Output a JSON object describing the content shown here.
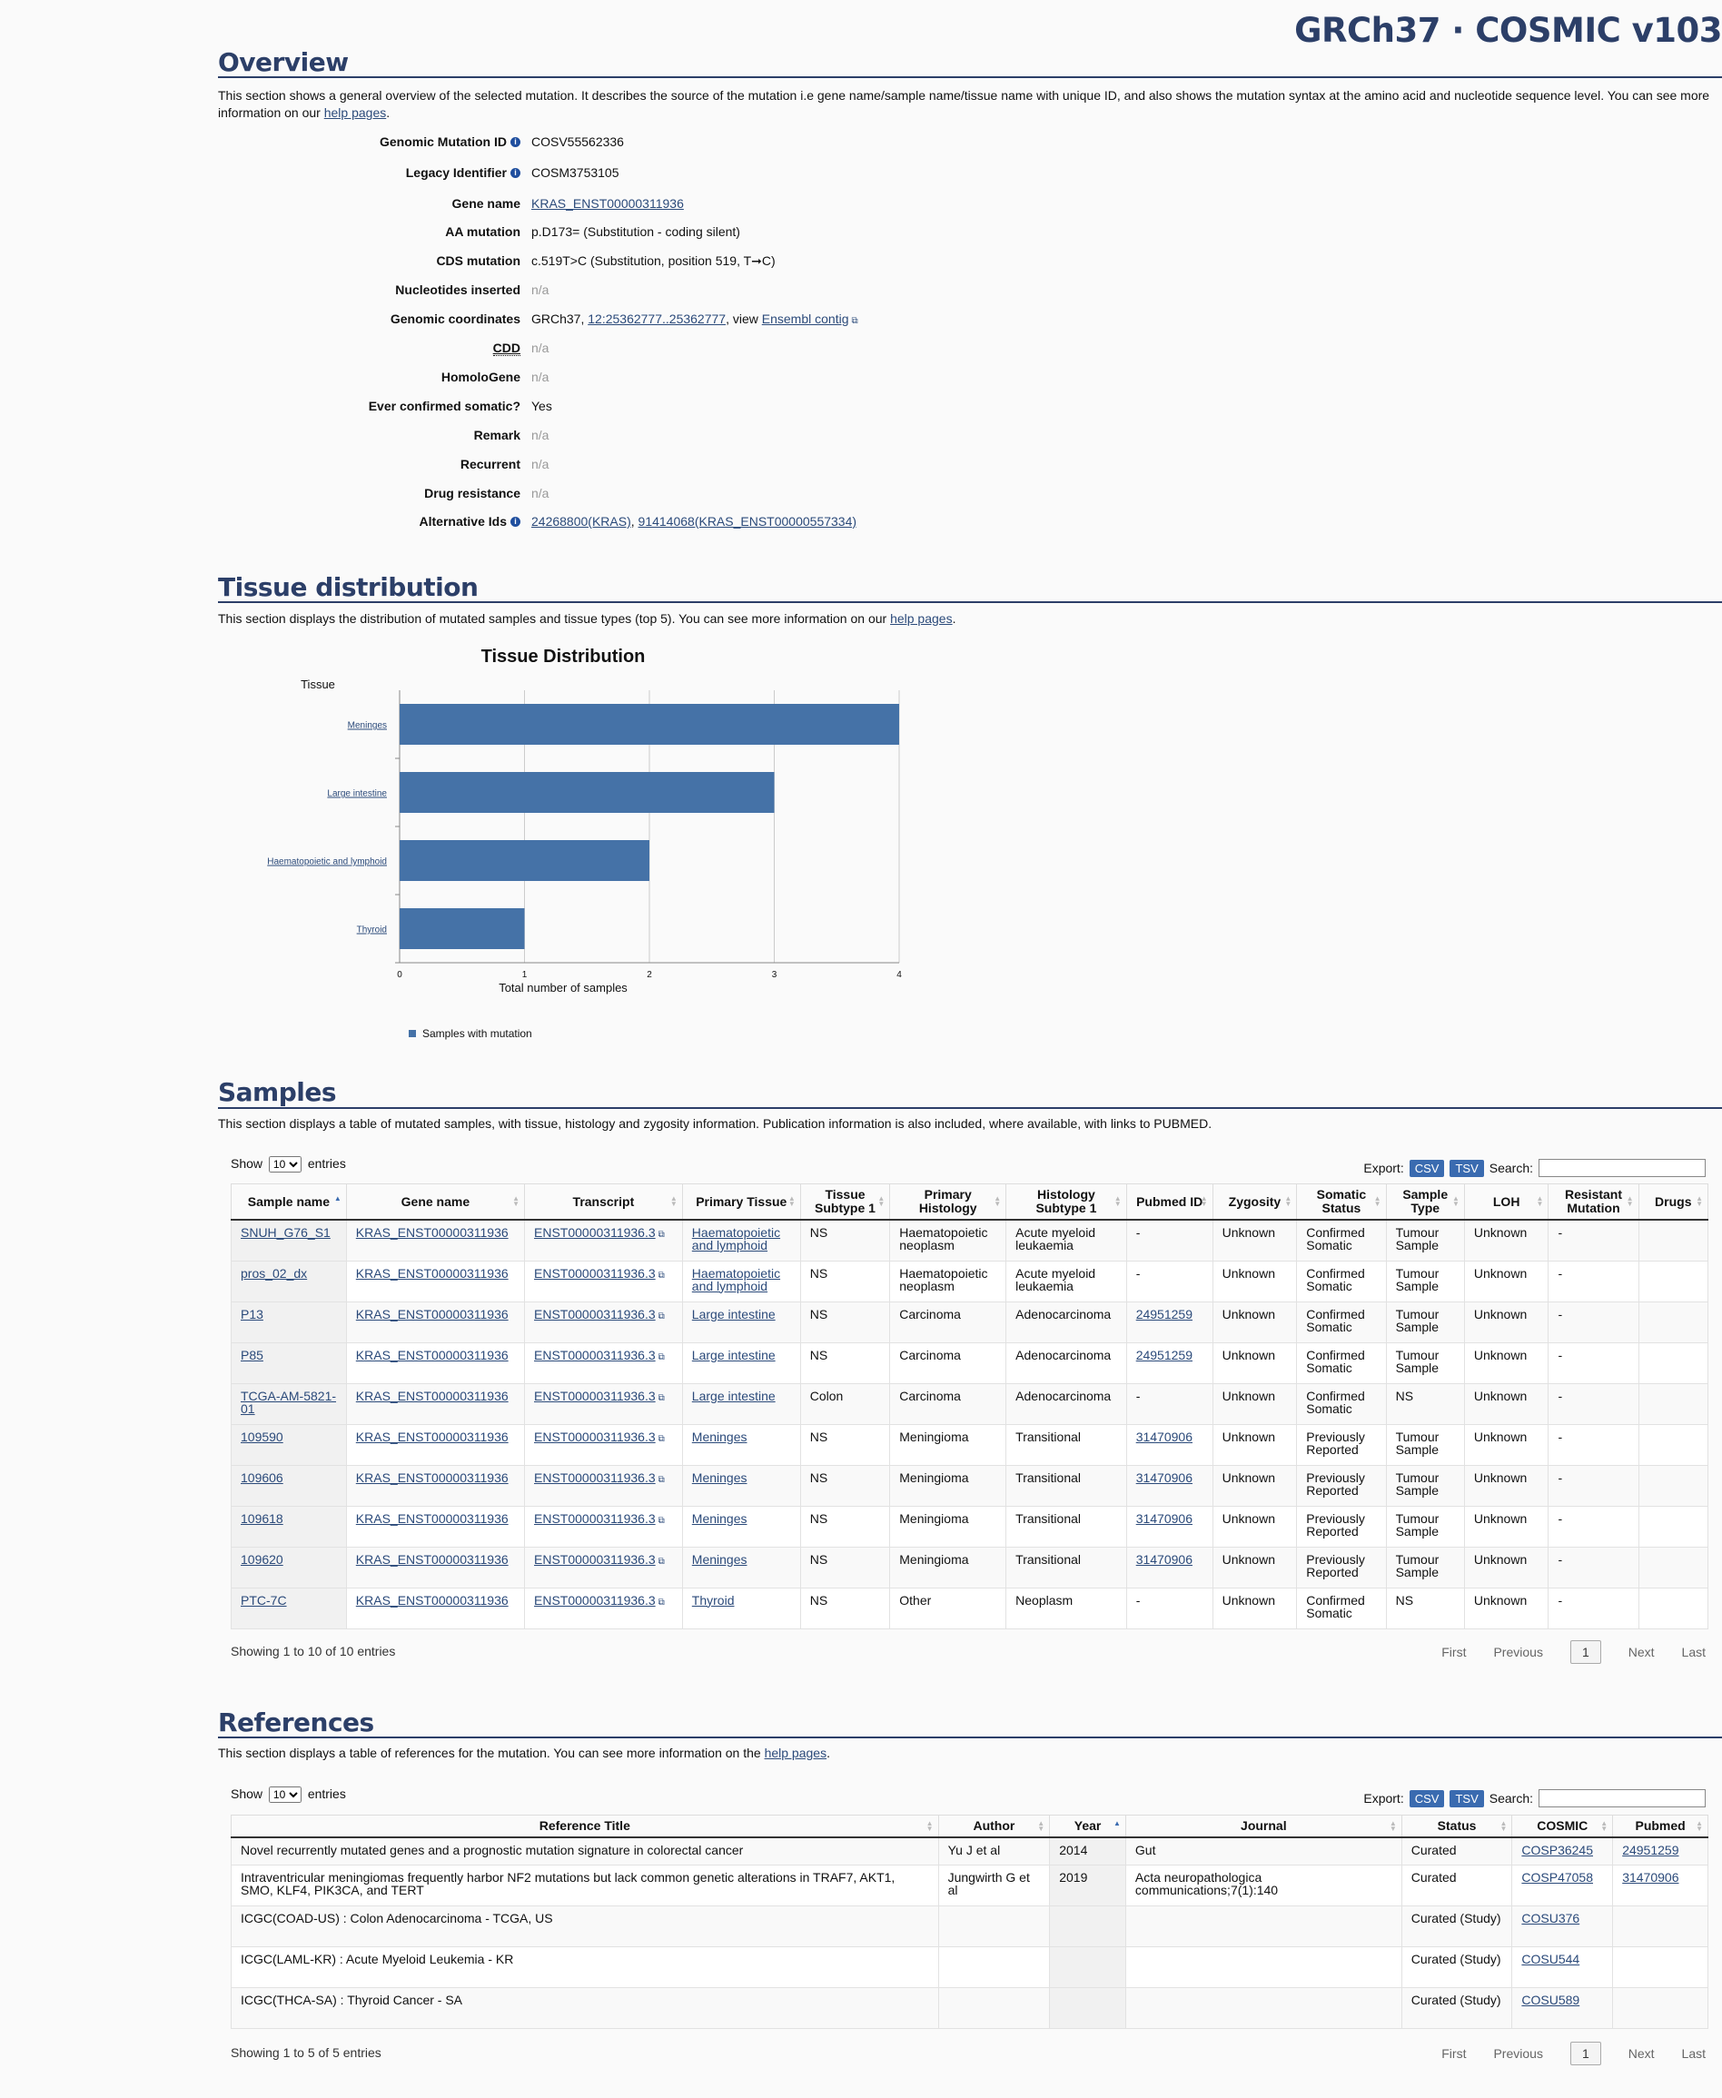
{
  "header": {
    "site_title": "GRCh37 · COSMIC v103"
  },
  "overview": {
    "heading": "Overview",
    "intro_1": "This section shows a general overview of the selected mutation. It describes the source of the mutation i.e gene name/sample name/tissue name with unique ID, and also shows the mutation syntax at the amino acid and nucleotide sequence level. You can see more information on our ",
    "intro_link": "help pages",
    "intro_end": ".",
    "fields": {
      "genomic_mutation_id": {
        "label": "Genomic Mutation ID",
        "value": "COSV55562336"
      },
      "legacy_identifier": {
        "label": "Legacy Identifier",
        "value": "COSM3753105"
      },
      "gene_name": {
        "label": "Gene name",
        "value": "KRAS_ENST00000311936"
      },
      "aa_mutation": {
        "label": "AA mutation",
        "value": "p.D173= (Substitution - coding silent)"
      },
      "cds_mutation": {
        "label": "CDS mutation",
        "value": "c.519T>C (Substitution, position 519, T➞C)"
      },
      "nucleotides_inserted": {
        "label": "Nucleotides inserted",
        "value": "n/a"
      },
      "genomic_coordinates": {
        "label": "Genomic coordinates",
        "prefix": "GRCh37, ",
        "link": "12:25362777..25362777",
        "mid": ", view ",
        "link2": "Ensembl contig"
      },
      "cdd": {
        "label": "CDD",
        "value": "n/a"
      },
      "homologene": {
        "label": "HomoloGene",
        "value": "n/a"
      },
      "ever_confirmed": {
        "label": "Ever confirmed somatic?",
        "value": "Yes"
      },
      "remark": {
        "label": "Remark",
        "value": "n/a"
      },
      "recurrent": {
        "label": "Recurrent",
        "value": "n/a"
      },
      "drug_resistance": {
        "label": "Drug resistance",
        "value": "n/a"
      },
      "alternative_ids": {
        "label": "Alternative Ids",
        "link1": "24268800(KRAS)",
        "sep": ", ",
        "link2": "91414068(KRAS_ENST00000557334)"
      }
    }
  },
  "tissue": {
    "heading": "Tissue distribution",
    "intro": "This section displays the distribution of mutated samples and tissue types (top 5). You can see more information on our ",
    "intro_link": "help pages",
    "intro_end": "."
  },
  "chart_data": {
    "type": "bar",
    "orientation": "horizontal",
    "title": "Tissue Distribution",
    "ylabel": "Tissue",
    "xlabel": "Total number of samples",
    "categories": [
      "Meninges",
      "Large intestine",
      "Haematopoietic and lymphoid",
      "Thyroid"
    ],
    "series": [
      {
        "name": "Samples with mutation",
        "values": [
          4,
          3,
          2,
          1
        ]
      }
    ],
    "xlim": [
      0,
      4
    ],
    "xticks": [
      "0",
      "1",
      "2",
      "3",
      "4"
    ],
    "bar_color": "#4572a7",
    "grid": true,
    "legend_position": "bottom-left"
  },
  "samples": {
    "heading": "Samples",
    "intro": "This section displays a table of mutated samples, with tissue, histology and zygosity information. Publication information is also included, where available, with links to PUBMED.",
    "show": "Show",
    "page_size": "10",
    "entries": "entries",
    "export": "Export:",
    "csv": "CSV",
    "tsv": "TSV",
    "search": "Search:",
    "columns": [
      "Sample name",
      "Gene name",
      "Transcript",
      "Primary Tissue",
      "Tissue Subtype 1",
      "Primary Histology",
      "Histology Subtype 1",
      "Pubmed ID",
      "Zygosity",
      "Somatic Status",
      "Sample Type",
      "LOH",
      "Resistant Mutation",
      "Drugs"
    ],
    "rows": [
      [
        "SNUH_G76_S1",
        "KRAS_ENST00000311936",
        "ENST00000311936.3",
        "Haematopoietic and lymphoid",
        "NS",
        "Haematopoietic neoplasm",
        "Acute myeloid leukaemia",
        "-",
        "Unknown",
        "Confirmed Somatic",
        "Tumour Sample",
        "Unknown",
        "-",
        ""
      ],
      [
        "pros_02_dx",
        "KRAS_ENST00000311936",
        "ENST00000311936.3",
        "Haematopoietic and lymphoid",
        "NS",
        "Haematopoietic neoplasm",
        "Acute myeloid leukaemia",
        "-",
        "Unknown",
        "Confirmed Somatic",
        "Tumour Sample",
        "Unknown",
        "-",
        ""
      ],
      [
        "P13",
        "KRAS_ENST00000311936",
        "ENST00000311936.3",
        "Large intestine",
        "NS",
        "Carcinoma",
        "Adenocarcinoma",
        "24951259",
        "Unknown",
        "Confirmed Somatic",
        "Tumour Sample",
        "Unknown",
        "-",
        ""
      ],
      [
        "P85",
        "KRAS_ENST00000311936",
        "ENST00000311936.3",
        "Large intestine",
        "NS",
        "Carcinoma",
        "Adenocarcinoma",
        "24951259",
        "Unknown",
        "Confirmed Somatic",
        "Tumour Sample",
        "Unknown",
        "-",
        ""
      ],
      [
        "TCGA-AM-5821-01",
        "KRAS_ENST00000311936",
        "ENST00000311936.3",
        "Large intestine",
        "Colon",
        "Carcinoma",
        "Adenocarcinoma",
        "-",
        "Unknown",
        "Confirmed Somatic",
        "NS",
        "Unknown",
        "-",
        ""
      ],
      [
        "109590",
        "KRAS_ENST00000311936",
        "ENST00000311936.3",
        "Meninges",
        "NS",
        "Meningioma",
        "Transitional",
        "31470906",
        "Unknown",
        "Previously Reported",
        "Tumour Sample",
        "Unknown",
        "-",
        ""
      ],
      [
        "109606",
        "KRAS_ENST00000311936",
        "ENST00000311936.3",
        "Meninges",
        "NS",
        "Meningioma",
        "Transitional",
        "31470906",
        "Unknown",
        "Previously Reported",
        "Tumour Sample",
        "Unknown",
        "-",
        ""
      ],
      [
        "109618",
        "KRAS_ENST00000311936",
        "ENST00000311936.3",
        "Meninges",
        "NS",
        "Meningioma",
        "Transitional",
        "31470906",
        "Unknown",
        "Previously Reported",
        "Tumour Sample",
        "Unknown",
        "-",
        ""
      ],
      [
        "109620",
        "KRAS_ENST00000311936",
        "ENST00000311936.3",
        "Meninges",
        "NS",
        "Meningioma",
        "Transitional",
        "31470906",
        "Unknown",
        "Previously Reported",
        "Tumour Sample",
        "Unknown",
        "-",
        ""
      ],
      [
        "PTC-7C",
        "KRAS_ENST00000311936",
        "ENST00000311936.3",
        "Thyroid",
        "NS",
        "Other",
        "Neoplasm",
        "-",
        "Unknown",
        "Confirmed Somatic",
        "NS",
        "Unknown",
        "-",
        ""
      ]
    ],
    "info": "Showing 1 to 10 of 10 entries",
    "pager": {
      "first": "First",
      "previous": "Previous",
      "current": "1",
      "next": "Next",
      "last": "Last"
    }
  },
  "references": {
    "heading": "References",
    "intro": "This section displays a table of references for the mutation. You can see more information on the ",
    "intro_link": "help pages",
    "intro_end": ".",
    "show": "Show",
    "page_size": "10",
    "entries": "entries",
    "export": "Export:",
    "csv": "CSV",
    "tsv": "TSV",
    "search": "Search:",
    "columns": [
      "Reference Title",
      "Author",
      "Year",
      "Journal",
      "Status",
      "COSMIC",
      "Pubmed"
    ],
    "rows": [
      [
        "Novel recurrently mutated genes and a prognostic mutation signature in colorectal cancer",
        "Yu J et al",
        "2014",
        "Gut",
        "Curated",
        "COSP36245",
        "24951259"
      ],
      [
        "Intraventricular meningiomas frequently harbor NF2 mutations but lack common genetic alterations in TRAF7, AKT1, SMO, KLF4, PIK3CA, and TERT",
        "Jungwirth G et al",
        "2019",
        "Acta neuropathologica communications;7(1):140",
        "Curated",
        "COSP47058",
        "31470906"
      ],
      [
        "ICGC(COAD-US) : Colon Adenocarcinoma - TCGA, US",
        "",
        "",
        "",
        "Curated (Study)",
        "COSU376",
        ""
      ],
      [
        "ICGC(LAML-KR) : Acute Myeloid Leukemia - KR",
        "",
        "",
        "",
        "Curated (Study)",
        "COSU544",
        ""
      ],
      [
        "ICGC(THCA-SA) : Thyroid Cancer - SA",
        "",
        "",
        "",
        "Curated (Study)",
        "COSU589",
        ""
      ]
    ],
    "info": "Showing 1 to 5 of 5 entries",
    "pager": {
      "first": "First",
      "previous": "Previous",
      "current": "1",
      "next": "Next",
      "last": "Last"
    }
  }
}
